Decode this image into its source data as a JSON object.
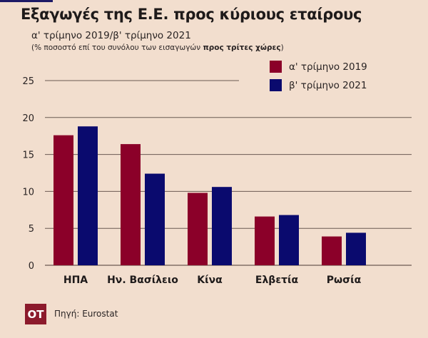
{
  "header": {
    "title": "Εξαγωγές της Ε.Ε. προς κύριους εταίρους",
    "subtitle": "α' τρίμηνο 2019/β' τρίμηνο 2021",
    "note_prefix": "(% ποσοστό επί του συνόλου των εισαγωγών ",
    "note_bold": "προς τρίτες χώρες",
    "note_suffix": ")"
  },
  "footer": {
    "logo_text": "ΟΤ",
    "source": "Πηγή: Eurostat"
  },
  "colors": {
    "series_2019": "#8b0029",
    "series_2021": "#0a0a6e",
    "gridline": "#6b5a52",
    "background": "#f2dece"
  },
  "chart_data": {
    "type": "bar",
    "title": "Εξαγωγές της Ε.Ε. προς κύριους εταίρους",
    "subtitle": "α' τρίμηνο 2019/β' τρίμηνο 2021",
    "xlabel": "",
    "ylabel": "% ποσοστό επί του συνόλου των εισαγωγών προς τρίτες χώρες",
    "categories": [
      "ΗΠΑ",
      "Ην. Βασίλειο",
      "Κίνα",
      "Ελβετία",
      "Ρωσία"
    ],
    "series": [
      {
        "name": "α' τρίμηνο 2019",
        "color": "#8b0029",
        "values": [
          17.6,
          16.4,
          9.8,
          6.6,
          3.9
        ]
      },
      {
        "name": "β' τρίμηνο 2021",
        "color": "#0a0a6e",
        "values": [
          18.8,
          12.4,
          10.6,
          6.8,
          4.4
        ]
      }
    ],
    "yticks": [
      0,
      5,
      10,
      15,
      20,
      25
    ],
    "ylim": [
      0,
      25
    ],
    "grid": true,
    "legend_position": "top-right"
  }
}
